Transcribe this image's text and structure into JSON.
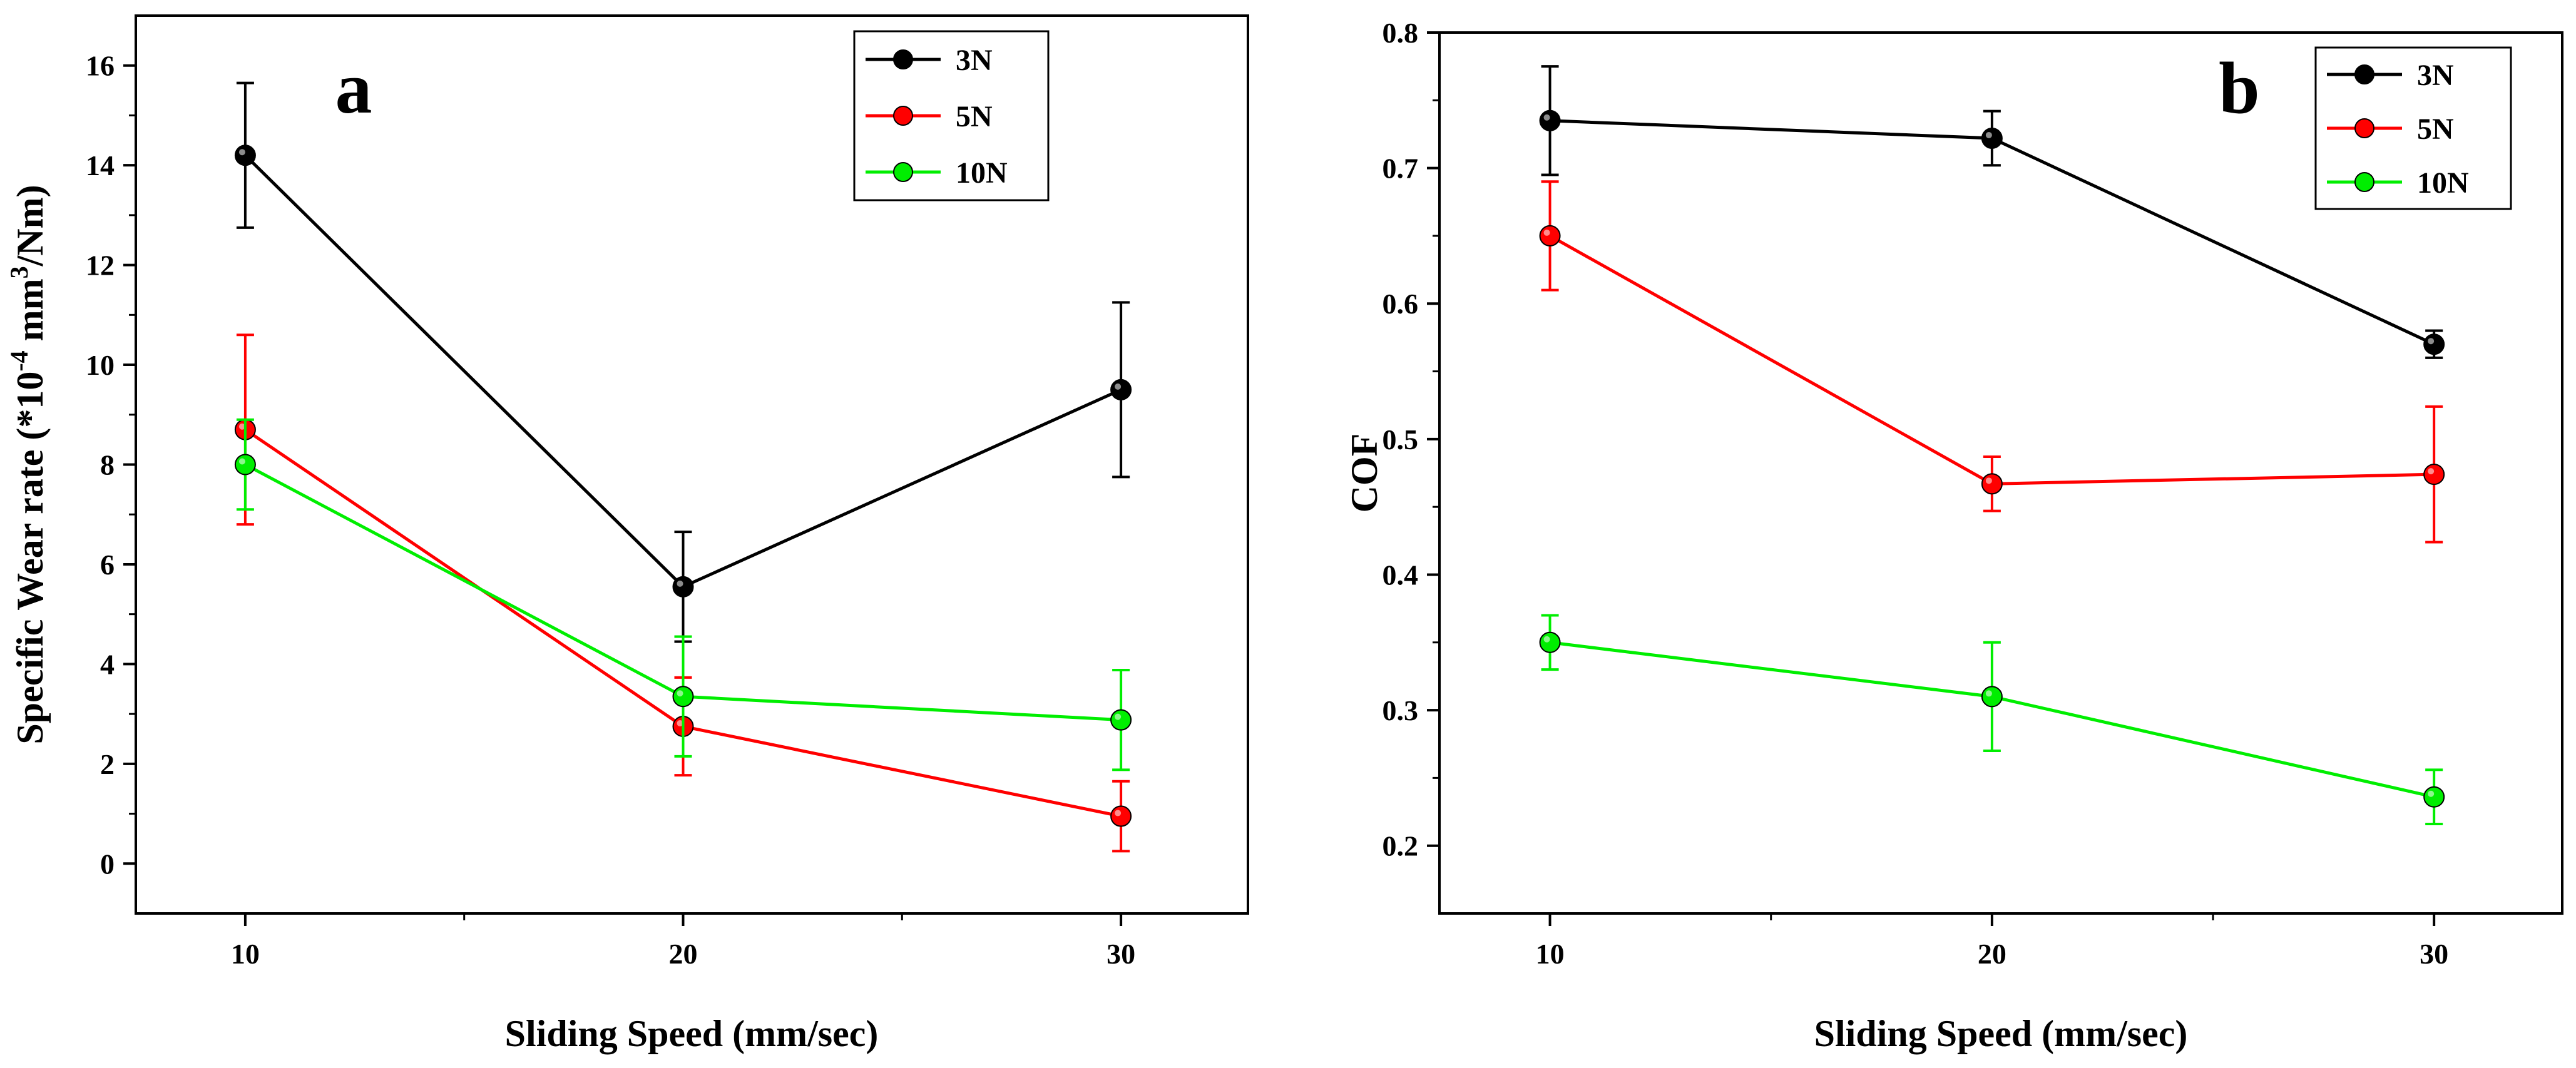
{
  "colors": {
    "3N": "#000000",
    "5N": "#ff0000",
    "10N": "#00ee00"
  },
  "chart_data": [
    {
      "type": "line",
      "panel_label": "a",
      "xlabel": "Sliding Speed (mm/sec)",
      "ylabel_parts": {
        "prefix": "Specific Wear rate (*10",
        "exp": "-4",
        "mid": " mm",
        "exp2": "3",
        "suffix": "/Nm)"
      },
      "x": [
        10,
        20,
        30
      ],
      "xlim": [
        7.5,
        30
      ],
      "x_ticks": [
        10,
        20,
        30
      ],
      "x_ticks_labels": [
        "10",
        "20",
        "30"
      ],
      "x_minor_ticks": [
        15,
        25
      ],
      "ylim": [
        -1,
        17
      ],
      "y_ticks": [
        0,
        2,
        4,
        6,
        8,
        10,
        12,
        14,
        16
      ],
      "y_ticks_labels": [
        "0",
        "2",
        "4",
        "6",
        "8",
        "10",
        "12",
        "14",
        "16"
      ],
      "legend_position": "top-right",
      "series": [
        {
          "name": "3N",
          "color": "#000000",
          "values": [
            14.2,
            5.55,
            9.5
          ],
          "errors": [
            1.45,
            1.1,
            1.75
          ]
        },
        {
          "name": "5N",
          "color": "#ff0000",
          "values": [
            8.7,
            2.75,
            0.95
          ],
          "errors": [
            1.9,
            0.98,
            0.7
          ]
        },
        {
          "name": "10N",
          "color": "#00ee00",
          "values": [
            8.0,
            3.35,
            2.88
          ],
          "errors": [
            0.9,
            1.2,
            1.0
          ]
        }
      ]
    },
    {
      "type": "line",
      "panel_label": "b",
      "xlabel": "Sliding Speed (mm/sec)",
      "ylabel": "COF",
      "x": [
        10,
        20,
        30
      ],
      "xlim": [
        7.5,
        30
      ],
      "x_ticks": [
        10,
        20,
        30
      ],
      "x_ticks_labels": [
        "10",
        "20",
        "30"
      ],
      "x_minor_ticks": [
        15,
        25
      ],
      "ylim": [
        0.15,
        0.8
      ],
      "y_ticks": [
        0.2,
        0.3,
        0.4,
        0.5,
        0.6,
        0.7,
        0.8
      ],
      "y_ticks_labels": [
        "0.2",
        "0.3",
        "0.4",
        "0.5",
        "0.6",
        "0.7",
        "0.8"
      ],
      "legend_position": "top-right",
      "series": [
        {
          "name": "3N",
          "color": "#000000",
          "values": [
            0.735,
            0.722,
            0.57
          ],
          "errors": [
            0.04,
            0.02,
            0.01
          ]
        },
        {
          "name": "5N",
          "color": "#ff0000",
          "values": [
            0.65,
            0.467,
            0.474
          ],
          "errors": [
            0.04,
            0.02,
            0.05
          ]
        },
        {
          "name": "10N",
          "color": "#00ee00",
          "values": [
            0.35,
            0.31,
            0.236
          ],
          "errors": [
            0.02,
            0.04,
            0.02
          ]
        }
      ]
    }
  ]
}
